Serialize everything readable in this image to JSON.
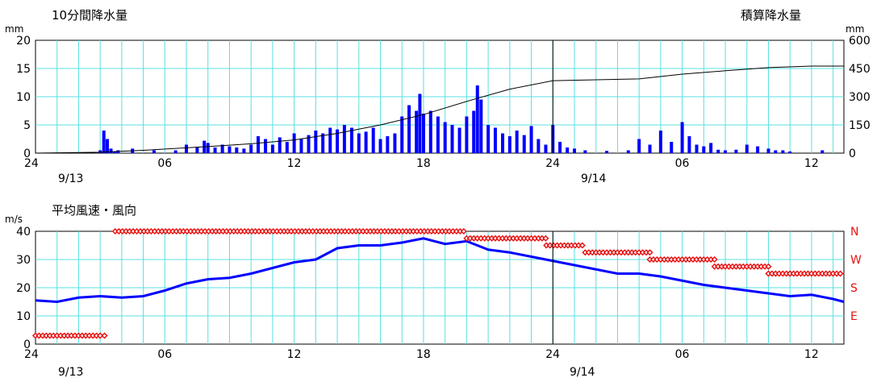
{
  "chart_data": [
    {
      "type": "bar+line",
      "title": "10分間降水量",
      "right_title": "積算降水量",
      "y_unit_left": "mm",
      "y_unit_right": "mm",
      "ylim": [
        0,
        20
      ],
      "y2lim": [
        0,
        600
      ],
      "y_ticks": [
        "0",
        "5",
        "10",
        "15",
        "20"
      ],
      "y2_ticks": [
        "0",
        "150",
        "300",
        "450",
        "600"
      ],
      "x_ticks": [
        "24",
        "06",
        "12",
        "18",
        "24",
        "06",
        "12"
      ],
      "date_labels": [
        "9/13",
        "9/14"
      ],
      "x_range_hours": [
        0,
        37.5
      ],
      "grid": true,
      "series": [
        {
          "kind": "bars",
          "color": "#0000ff",
          "x_hours": [
            3.0,
            3.17,
            3.33,
            3.5,
            3.67,
            3.83,
            4.5,
            5.5,
            6.5,
            7.0,
            7.5,
            7.83,
            8.0,
            8.33,
            8.67,
            9.0,
            9.33,
            9.67,
            10.0,
            10.33,
            10.67,
            11.0,
            11.33,
            11.67,
            12.0,
            12.33,
            12.67,
            13.0,
            13.33,
            13.67,
            14.0,
            14.33,
            14.67,
            15.0,
            15.33,
            15.67,
            16.0,
            16.33,
            16.67,
            17.0,
            17.33,
            17.67,
            17.83,
            18.0,
            18.33,
            18.67,
            19.0,
            19.33,
            19.67,
            20.0,
            20.33,
            20.5,
            20.67,
            21.0,
            21.33,
            21.67,
            22.0,
            22.33,
            22.67,
            23.0,
            23.33,
            23.67,
            24.0,
            24.33,
            24.67,
            25.0,
            25.5,
            26.5,
            27.5,
            28.0,
            28.5,
            29.0,
            29.5,
            30.0,
            30.33,
            30.67,
            31.0,
            31.33,
            31.67,
            32.0,
            32.5,
            33.0,
            33.5,
            34.0,
            34.33,
            34.67,
            35.0,
            36.5
          ],
          "values": [
            0.5,
            4.0,
            2.5,
            0.8,
            0.3,
            0.5,
            0.8,
            0.5,
            0.5,
            1.5,
            1.0,
            2.2,
            1.8,
            1.0,
            1.5,
            1.2,
            1.0,
            0.8,
            1.5,
            3.0,
            2.5,
            1.5,
            2.8,
            2.0,
            3.5,
            2.5,
            3.2,
            4.0,
            3.5,
            4.5,
            4.2,
            5.0,
            4.5,
            3.5,
            3.8,
            4.5,
            2.5,
            3.0,
            3.5,
            6.5,
            8.5,
            7.5,
            10.5,
            7.0,
            7.5,
            6.5,
            5.5,
            5.0,
            4.5,
            6.5,
            7.5,
            12.0,
            9.5,
            5.0,
            4.5,
            3.5,
            3.0,
            4.0,
            3.2,
            4.8,
            2.5,
            1.5,
            5.0,
            2.0,
            1.0,
            0.8,
            0.5,
            0.4,
            0.5,
            2.5,
            1.5,
            4.0,
            2.0,
            5.5,
            3.0,
            1.5,
            1.2,
            1.8,
            0.6,
            0.5,
            0.6,
            1.5,
            1.2,
            0.8,
            0.5,
            0.5,
            0.3,
            0.5
          ]
        },
        {
          "kind": "line",
          "axis": "right",
          "color": "#000000",
          "x_hours": [
            0,
            3,
            5,
            8,
            10,
            12,
            14,
            16,
            18,
            20,
            22,
            24,
            26,
            28,
            30,
            32,
            34,
            36,
            37.5
          ],
          "values": [
            0,
            5,
            15,
            35,
            50,
            70,
            105,
            150,
            205,
            275,
            340,
            385,
            390,
            395,
            420,
            438,
            455,
            463,
            463
          ]
        }
      ]
    },
    {
      "type": "line+scatter",
      "title": "平均風速・風向",
      "y_unit_left": "m/s",
      "ylim": [
        0,
        40
      ],
      "y_ticks": [
        "0",
        "10",
        "20",
        "30",
        "40"
      ],
      "y2_labels": [
        "N",
        "W",
        "S",
        "E"
      ],
      "x_ticks": [
        "24",
        "06",
        "12",
        "18",
        "24",
        "06",
        "12"
      ],
      "date_labels": [
        "9/13",
        "9/14"
      ],
      "x_range_hours": [
        0,
        37.5
      ],
      "grid": true,
      "series": [
        {
          "kind": "line",
          "color": "#0000ff",
          "x_hours": [
            0,
            1,
            2,
            3,
            4,
            5,
            6,
            7,
            8,
            9,
            10,
            11,
            12,
            13,
            14,
            15,
            16,
            17,
            18,
            19,
            20,
            21,
            22,
            23,
            24,
            25,
            26,
            27,
            28,
            29,
            30,
            31,
            32,
            33,
            34,
            35,
            36,
            37,
            37.5
          ],
          "values": [
            15.5,
            15,
            16.5,
            17,
            16.5,
            17,
            19,
            21.5,
            23,
            23.5,
            25,
            27,
            29,
            30,
            34,
            35,
            35,
            36,
            37.5,
            35.5,
            36.5,
            33.5,
            32.5,
            31,
            29.5,
            28,
            26.5,
            25,
            25,
            24,
            22.5,
            21,
            20,
            19,
            18,
            17,
            17.5,
            16,
            15
          ]
        },
        {
          "kind": "markers",
          "color": "#e81010",
          "direction_scale": [
            "E",
            "S",
            "W",
            "N"
          ],
          "segments": [
            {
              "from": 0,
              "to": 3.0,
              "level": 3.0
            },
            {
              "from": 3.2,
              "to": 3.3,
              "level": 3.0
            },
            {
              "from": 3.7,
              "to": 20.0,
              "level": 40.0
            },
            {
              "from": 20.0,
              "to": 23.7,
              "level": 37.5
            },
            {
              "from": 23.7,
              "to": 25.5,
              "level": 35.0
            },
            {
              "from": 25.5,
              "to": 28.5,
              "level": 32.5
            },
            {
              "from": 28.5,
              "to": 31.5,
              "level": 30.0
            },
            {
              "from": 31.5,
              "to": 34.0,
              "level": 27.5
            },
            {
              "from": 34.0,
              "to": 35.0,
              "level": 25.0
            },
            {
              "from": 35.0,
              "to": 38.0,
              "level": 25.0
            },
            {
              "from": 38.0,
              "to": 45.0,
              "level": 25.0
            }
          ]
        }
      ]
    }
  ]
}
